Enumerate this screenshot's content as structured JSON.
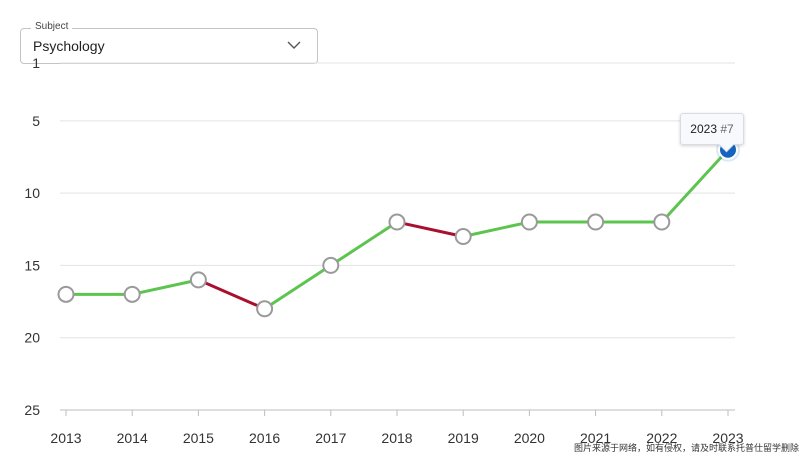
{
  "subject": {
    "legend": "Subject",
    "value": "Psychology"
  },
  "tooltip": {
    "year": "2023",
    "rank": "#7"
  },
  "watermark": "图片来源于网络，如有侵权，请及时联系托普仕留学删除",
  "chart_data": {
    "type": "line",
    "x": [
      "2013",
      "2014",
      "2015",
      "2016",
      "2017",
      "2018",
      "2019",
      "2020",
      "2021",
      "2022",
      "2023"
    ],
    "series": [
      {
        "values": [
          17,
          17,
          16,
          18,
          15,
          12,
          13,
          12,
          12,
          12,
          7
        ]
      }
    ],
    "yticks": [
      1,
      5,
      10,
      15,
      20,
      25
    ],
    "ylim": [
      1,
      25
    ],
    "y_inverted": true,
    "grid": true,
    "colors": {
      "improve": "#5cc44f",
      "decline": "#a8102e",
      "point_fill": "#ffffff",
      "point_stroke": "#9a9a9a",
      "highlight": "#1565c0"
    },
    "highlight_index": 10
  }
}
